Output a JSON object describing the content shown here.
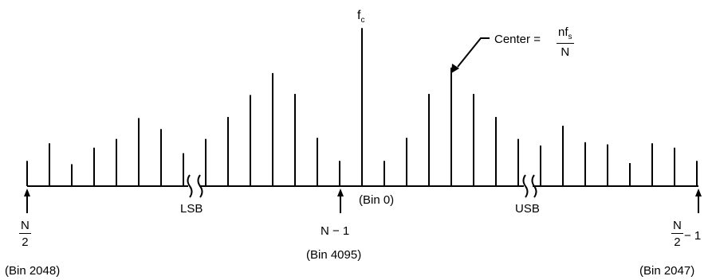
{
  "spectral_lines": [
    {
      "height": 0.23
    },
    {
      "height": 0.39
    },
    {
      "height": 0.2
    },
    {
      "height": 0.35
    },
    {
      "height": 0.43
    },
    {
      "height": 0.62
    },
    {
      "height": 0.52
    },
    {
      "height": 0.3
    },
    {
      "height": 0.43
    },
    {
      "height": 0.63
    },
    {
      "height": 0.83
    },
    {
      "height": 1.03
    },
    {
      "height": 0.84
    },
    {
      "height": 0.44
    },
    {
      "height": 0.23
    },
    {
      "height": 1.44
    },
    {
      "height": 0.23
    },
    {
      "height": 0.44
    },
    {
      "height": 0.84
    },
    {
      "height": 1.08
    },
    {
      "height": 0.84
    },
    {
      "height": 0.63
    },
    {
      "height": 0.43
    },
    {
      "height": 0.37
    },
    {
      "height": 0.55
    },
    {
      "height": 0.4
    },
    {
      "height": 0.38
    },
    {
      "height": 0.21
    },
    {
      "height": 0.39
    },
    {
      "height": 0.35
    },
    {
      "height": 0.23
    }
  ],
  "labels": {
    "fc_base": "f",
    "fc_sub": "c",
    "center_prefix": "Center = ",
    "center_num_base": "nf",
    "center_num_sub": "s",
    "center_den": "N",
    "lsb": "LSB",
    "usb": "USB",
    "bin0": "(Bin 0)",
    "n_minus_1": "N − 1",
    "bin4095": "(Bin 4095)",
    "left_num": "N",
    "left_den": "2",
    "bin2048": "(Bin 2048)",
    "right_num": "N",
    "right_den": "2",
    "right_suffix": " − 1",
    "bin2047": "(Bin 2047)"
  }
}
